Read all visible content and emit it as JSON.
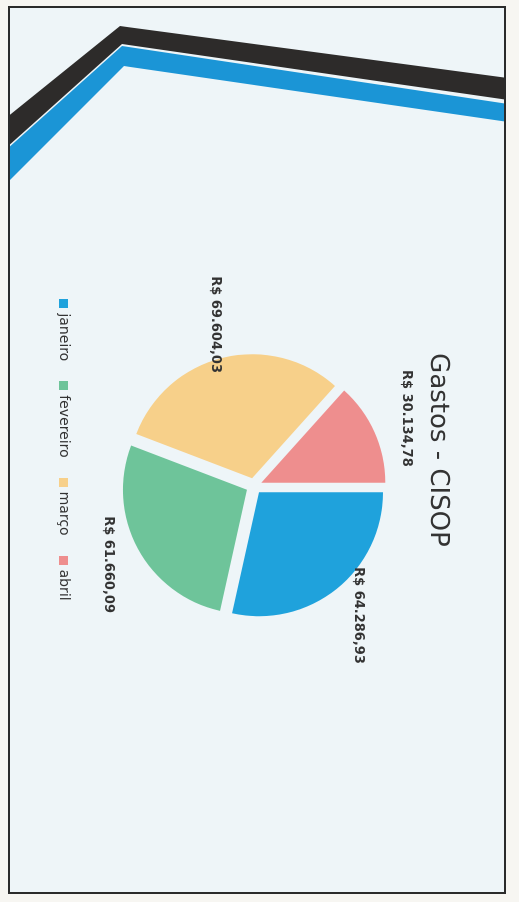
{
  "chart_data": {
    "type": "pie",
    "title": "Gastos - CISOP",
    "categories": [
      "janeiro",
      "fevereiro",
      "março",
      "abril"
    ],
    "values": [
      64286.93,
      61660.09,
      69604.03,
      30134.78
    ],
    "labels": [
      "R$ 64.286,93",
      "R$ 61.660,09",
      "R$ 69.604,03",
      "R$ 30.134,78"
    ],
    "colors": [
      "#1fa2dc",
      "#6ec49a",
      "#f7d08a",
      "#ee8e8e"
    ],
    "legend_position": "bottom"
  },
  "decor": {
    "band_dark": "#2d2b2a",
    "band_blue": "#1b95d6"
  }
}
